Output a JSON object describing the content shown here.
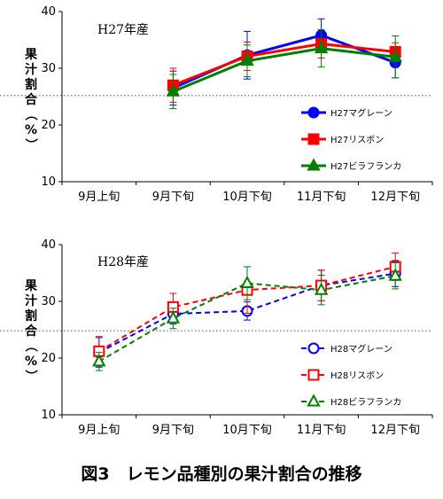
{
  "caption": "図3　レモン品種別の果汁割合の推移",
  "chart_data": [
    {
      "type": "line",
      "title": "H27年産",
      "ylabel": "果汁割合（%）",
      "xlabel": "",
      "ylim": [
        10,
        40
      ],
      "yticks": [
        10,
        20,
        30,
        40
      ],
      "categories": [
        "9月上旬",
        "9月下旬",
        "10月下旬",
        "11月下旬",
        "12月下旬"
      ],
      "reference_line": 25.2,
      "legend_position": "right",
      "series": [
        {
          "name": "H27マグレーン",
          "color": "#0000ff",
          "marker": "circle",
          "filled": true,
          "dashed": false,
          "values": [
            null,
            26.5,
            32.3,
            35.8,
            31.0
          ],
          "errors": [
            null,
            3.0,
            4.2,
            2.9,
            2.7
          ]
        },
        {
          "name": "H27リスボン",
          "color": "#ff0000",
          "marker": "square",
          "filled": true,
          "dashed": false,
          "values": [
            null,
            27.0,
            32.1,
            34.3,
            32.9
          ],
          "errors": [
            null,
            3.0,
            2.5,
            2.5,
            1.6
          ]
        },
        {
          "name": "H27ビラフランカ",
          "color": "#008000",
          "marker": "triangle",
          "filled": true,
          "dashed": false,
          "values": [
            null,
            25.9,
            31.3,
            33.5,
            32.0
          ],
          "errors": [
            null,
            3.0,
            2.8,
            3.3,
            3.7
          ]
        }
      ]
    },
    {
      "type": "line",
      "title": "H28年産",
      "ylabel": "果汁割合（%）",
      "xlabel": "",
      "ylim": [
        10,
        40
      ],
      "yticks": [
        10,
        20,
        30,
        40
      ],
      "categories": [
        "9月上旬",
        "9月下旬",
        "10月下旬",
        "11月下旬",
        "12月下旬"
      ],
      "reference_line": 24.8,
      "legend_position": "right",
      "series": [
        {
          "name": "H28マグレーン",
          "color": "#0000ff",
          "marker": "circle",
          "filled": false,
          "dashed": true,
          "values": [
            21.0,
            27.8,
            28.3,
            32.8,
            34.9
          ],
          "errors": [
            2.6,
            1.8,
            1.6,
            2.7,
            2.3
          ]
        },
        {
          "name": "H28リスボン",
          "color": "#ff0000",
          "marker": "square",
          "filled": false,
          "dashed": true,
          "values": [
            21.2,
            29.0,
            32.0,
            32.8,
            36.1
          ],
          "errors": [
            2.6,
            2.4,
            4.1,
            2.7,
            2.4
          ]
        },
        {
          "name": "H28ビラフランカ",
          "color": "#008000",
          "marker": "triangle",
          "filled": false,
          "dashed": true,
          "values": [
            19.4,
            27.0,
            33.2,
            32.0,
            34.5
          ],
          "errors": [
            1.6,
            1.8,
            2.9,
            2.6,
            2.3
          ]
        }
      ]
    }
  ]
}
